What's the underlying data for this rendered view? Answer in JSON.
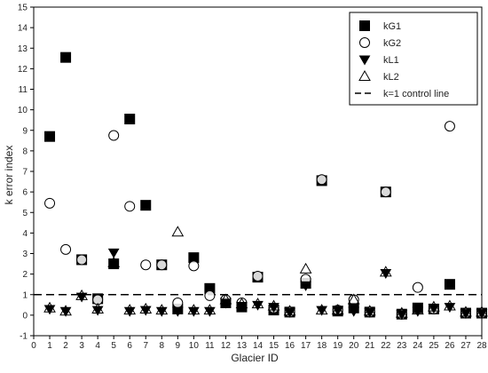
{
  "chart_data": {
    "type": "scatter",
    "title": "",
    "xlabel": "Glacier ID",
    "ylabel": "k error index",
    "xlim": [
      0,
      28
    ],
    "ylim": [
      -1,
      15
    ],
    "x_ticks": [
      0,
      1,
      2,
      3,
      4,
      5,
      6,
      7,
      8,
      9,
      10,
      11,
      12,
      13,
      14,
      15,
      16,
      17,
      18,
      19,
      20,
      21,
      22,
      23,
      24,
      25,
      26,
      27,
      28
    ],
    "y_ticks": [
      -1,
      0,
      1,
      2,
      3,
      4,
      5,
      6,
      7,
      8,
      9,
      10,
      11,
      12,
      13,
      14,
      15
    ],
    "grid": false,
    "legend_position": "top-right",
    "series": [
      {
        "name": "kG1",
        "marker": "filled-square",
        "color": "#000000",
        "x": [
          1,
          2,
          3,
          4,
          5,
          6,
          7,
          8,
          9,
          10,
          11,
          12,
          13,
          14,
          15,
          16,
          17,
          18,
          19,
          20,
          21,
          22,
          23,
          24,
          25,
          26,
          27,
          28
        ],
        "y": [
          8.7,
          12.55,
          2.7,
          0.8,
          2.5,
          9.55,
          5.35,
          2.45,
          0.3,
          2.8,
          1.3,
          0.6,
          0.4,
          1.85,
          0.25,
          0.15,
          1.55,
          6.55,
          0.2,
          0.35,
          0.15,
          6.0,
          0.05,
          0.35,
          0.3,
          1.5,
          0.1,
          0.1
        ]
      },
      {
        "name": "kG2",
        "marker": "open-circle",
        "color": "#000000",
        "x": [
          1,
          2,
          3,
          4,
          5,
          6,
          7,
          8,
          9,
          10,
          11,
          12,
          13,
          14,
          15,
          16,
          17,
          18,
          19,
          20,
          21,
          22,
          23,
          24,
          25,
          26,
          27,
          28
        ],
        "y": [
          5.45,
          3.2,
          2.7,
          0.75,
          8.75,
          5.3,
          2.45,
          2.45,
          0.6,
          2.4,
          0.95,
          0.75,
          0.6,
          1.9,
          0.35,
          0.15,
          1.75,
          6.6,
          0.25,
          0.75,
          0.15,
          6.0,
          0.05,
          1.35,
          0.3,
          9.2,
          0.1,
          0.1
        ]
      },
      {
        "name": "kL1",
        "marker": "filled-triangle-down",
        "color": "#000000",
        "x": [
          1,
          2,
          3,
          4,
          5,
          6,
          7,
          8,
          9,
          10,
          11,
          12,
          13,
          14,
          15,
          16,
          17,
          18,
          19,
          20,
          21,
          22,
          23,
          24,
          25,
          26,
          27,
          28
        ],
        "y": [
          0.3,
          0.2,
          0.9,
          0.25,
          3.05,
          0.2,
          0.25,
          0.2,
          0.2,
          0.2,
          0.2,
          0.6,
          0.45,
          0.5,
          0.4,
          0.15,
          1.45,
          0.25,
          0.25,
          0.2,
          0.15,
          2.05,
          0.05,
          0.2,
          0.35,
          0.4,
          0.1,
          0.1
        ]
      },
      {
        "name": "kL2",
        "marker": "open-triangle-up",
        "color": "#000000",
        "x": [
          1,
          2,
          3,
          4,
          5,
          6,
          7,
          8,
          9,
          10,
          11,
          12,
          13,
          14,
          15,
          16,
          17,
          18,
          19,
          20,
          21,
          22,
          23,
          24,
          25,
          26,
          27,
          28
        ],
        "y": [
          0.35,
          0.2,
          0.95,
          0.3,
          2.55,
          0.25,
          0.3,
          0.25,
          4.05,
          0.25,
          0.25,
          0.75,
          0.55,
          0.55,
          0.45,
          0.2,
          2.25,
          0.25,
          0.25,
          0.75,
          0.2,
          2.1,
          0.1,
          0.25,
          0.4,
          0.45,
          0.15,
          0.15
        ]
      }
    ],
    "control_line": {
      "name": "k=1 control line",
      "y": 1,
      "style": "dashed"
    }
  }
}
